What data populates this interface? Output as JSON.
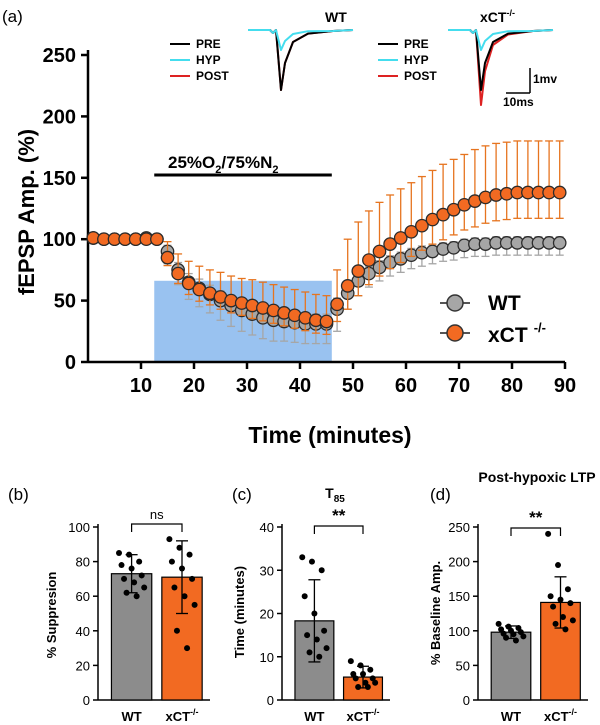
{
  "panel_labels": {
    "a": "(a)",
    "b": "(b)",
    "c": "(c)",
    "d": "(d)"
  },
  "chart_data": [
    {
      "id": "a",
      "type": "scatter",
      "xlabel": "Time (minutes)",
      "ylabel": "fEPSP Amp. (%)",
      "xlim": [
        0,
        90
      ],
      "ylim": [
        0,
        250
      ],
      "xticks": [
        10,
        20,
        30,
        40,
        50,
        60,
        70,
        80,
        90
      ],
      "yticks": [
        0,
        50,
        100,
        150,
        200,
        250
      ],
      "treatment": {
        "label_pre": "25%O",
        "label_sub1": "2",
        "label_mid": "/75%N",
        "label_sub2": "2",
        "x_start": 12.5,
        "x_end": 46,
        "color": "#99c2f0"
      },
      "legend": {
        "position": "bottom-right",
        "entries": [
          "WT",
          "xCT"
        ],
        "xct_sup": "-/-"
      },
      "series": [
        {
          "name": "WT",
          "color": "#a6a6a6",
          "err_color": "#a6a6a6",
          "x": [
            1,
            3,
            5,
            7,
            9,
            11,
            13,
            15,
            17,
            19,
            21,
            23,
            25,
            27,
            29,
            31,
            33,
            35,
            37,
            39,
            41,
            43,
            45,
            47,
            49,
            51,
            53,
            55,
            57,
            59,
            61,
            63,
            65,
            67,
            69,
            71,
            73,
            75,
            77,
            79,
            81,
            83,
            85,
            87,
            89
          ],
          "y": [
            101,
            100,
            100,
            100,
            100,
            101,
            100,
            90,
            75,
            65,
            60,
            55,
            50,
            46,
            42,
            39,
            36,
            34,
            33,
            32,
            31,
            31,
            31,
            43,
            56,
            66,
            72,
            77,
            81,
            84,
            87,
            89,
            90,
            92,
            93,
            95,
            96,
            96,
            97,
            97,
            97,
            97,
            97,
            97,
            97
          ],
          "err": [
            0,
            0,
            0,
            0,
            0,
            0,
            0,
            10,
            12,
            14,
            15,
            15,
            16,
            17,
            17,
            17,
            17,
            17,
            16,
            16,
            16,
            16,
            16,
            18,
            13,
            12,
            11,
            11,
            11,
            11,
            11,
            11,
            10,
            10,
            10,
            10,
            10,
            10,
            10,
            10,
            10,
            10,
            10,
            10,
            10
          ]
        },
        {
          "name": "xCT -/-",
          "color": "#f26a22",
          "err_color": "#e6741f",
          "x": [
            1,
            3,
            5,
            7,
            9,
            11,
            13,
            15,
            17,
            19,
            21,
            23,
            25,
            27,
            29,
            31,
            33,
            35,
            37,
            39,
            41,
            43,
            45,
            47,
            49,
            51,
            53,
            55,
            57,
            59,
            61,
            63,
            65,
            67,
            69,
            71,
            73,
            75,
            77,
            79,
            81,
            83,
            85,
            87,
            89
          ],
          "y": [
            101,
            100,
            100,
            100,
            100,
            100,
            100,
            85,
            72,
            64,
            59,
            56,
            53,
            50,
            48,
            46,
            44,
            42,
            40,
            38,
            36,
            34,
            33,
            47,
            62,
            74,
            83,
            90,
            96,
            101,
            106,
            111,
            116,
            120,
            124,
            128,
            131,
            134,
            136,
            137,
            138,
            138,
            138,
            138,
            138
          ],
          "err": [
            0,
            0,
            0,
            0,
            0,
            0,
            0,
            13,
            16,
            18,
            19,
            19,
            20,
            20,
            20,
            21,
            21,
            21,
            21,
            21,
            21,
            21,
            21,
            28,
            38,
            40,
            40,
            40,
            40,
            40,
            40,
            40,
            40,
            41,
            41,
            41,
            42,
            42,
            42,
            42,
            42,
            42,
            42,
            42,
            42
          ]
        }
      ]
    },
    {
      "id": "b",
      "type": "bar",
      "ylabel": "% Suppresion",
      "ylim": [
        0,
        100
      ],
      "yticks": [
        0,
        20,
        40,
        60,
        80,
        100
      ],
      "categories": [
        "WT",
        "xCT"
      ],
      "cat_sup": [
        "",
        "-/-"
      ],
      "values": [
        73,
        71
      ],
      "sd": [
        11,
        21
      ],
      "colors": [
        "#8c8c8c",
        "#f26a22"
      ],
      "points": [
        [
          85,
          84,
          80,
          78,
          76,
          72,
          70,
          68,
          65,
          62,
          60
        ],
        [
          93,
          88,
          84,
          80,
          76,
          70,
          65,
          60,
          55,
          40,
          30
        ]
      ],
      "significance": "ns"
    },
    {
      "id": "c",
      "type": "bar",
      "title": "T",
      "title_sub": "85",
      "ylabel": "Time (minutes)",
      "ylim": [
        0,
        40
      ],
      "yticks": [
        0,
        10,
        20,
        30,
        40
      ],
      "categories": [
        "WT",
        "xCT"
      ],
      "cat_sup": [
        "",
        "-/-"
      ],
      "values": [
        18.3,
        5.3
      ],
      "sd": [
        9.5,
        2.5
      ],
      "colors": [
        "#8c8c8c",
        "#f26a22"
      ],
      "points": [
        [
          33,
          32,
          30,
          24,
          20,
          16,
          15,
          14,
          12,
          11,
          10
        ],
        [
          9,
          8,
          7,
          6,
          6,
          5,
          5,
          4,
          4,
          3,
          3
        ]
      ],
      "significance": "**"
    },
    {
      "id": "d",
      "type": "bar",
      "title": "Post-hypoxic LTP",
      "ylabel": "% Baseline Amp.",
      "ylim": [
        0,
        250
      ],
      "yticks": [
        0,
        50,
        100,
        150,
        200,
        250
      ],
      "categories": [
        "WT",
        "xCT"
      ],
      "cat_sup": [
        "",
        "-/-"
      ],
      "values": [
        98,
        141
      ],
      "sd": [
        9,
        37
      ],
      "colors": [
        "#8c8c8c",
        "#f26a22"
      ],
      "points": [
        [
          110,
          106,
          104,
          102,
          100,
          98,
          96,
          95,
          92,
          90,
          86
        ],
        [
          240,
          195,
          160,
          150,
          145,
          140,
          135,
          120,
          115,
          110,
          102
        ]
      ],
      "significance": "**"
    }
  ],
  "insets": [
    {
      "label": "WT",
      "label_sup": "",
      "legend": [
        "PRE",
        "HYP",
        "POST"
      ],
      "depth_pre": 60,
      "depth_hyp": 20,
      "depth_post": 60
    },
    {
      "label": "xCT",
      "label_sup": "-/-",
      "legend": [
        "PRE",
        "HYP",
        "POST"
      ],
      "depth_pre": 60,
      "depth_hyp": 20,
      "depth_post": 75
    }
  ],
  "trace_colors": {
    "PRE": "#000000",
    "HYP": "#44ddee",
    "POST": "#dd2222"
  },
  "scale_bar": {
    "amplitude": "1mv",
    "time": "10ms"
  }
}
